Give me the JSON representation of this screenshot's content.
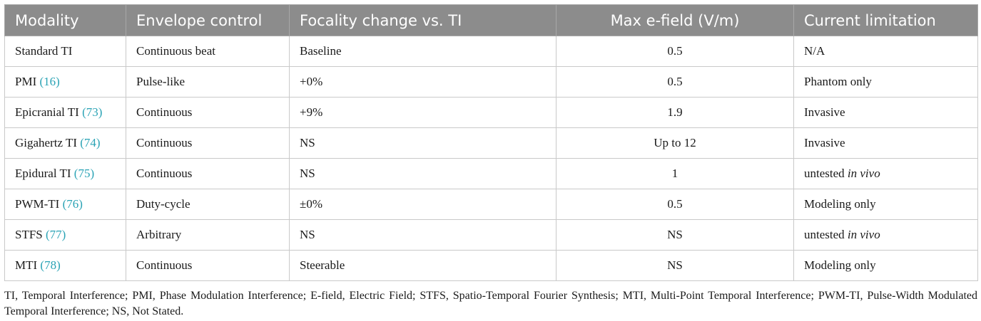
{
  "table": {
    "headers": [
      "Modality",
      "Envelope control",
      "Focality change vs. TI",
      "Max e-field (V/m)",
      "Current limitation"
    ],
    "rows": [
      {
        "modality": "Standard TI",
        "ref": "",
        "envelope": "Continuous beat",
        "focality": "Baseline",
        "max_field": "0.5",
        "limitation": "N/A",
        "limitation_italic": ""
      },
      {
        "modality": "PMI",
        "ref": "(16)",
        "envelope": "Pulse-like",
        "focality": "+0%",
        "max_field": "0.5",
        "limitation": "Phantom only",
        "limitation_italic": ""
      },
      {
        "modality": "Epicranial TI",
        "ref": "(73)",
        "envelope": "Continuous",
        "focality": "+9%",
        "max_field": "1.9",
        "limitation": "Invasive",
        "limitation_italic": ""
      },
      {
        "modality": "Gigahertz TI",
        "ref": "(74)",
        "envelope": "Continuous",
        "focality": "NS",
        "max_field": "Up to 12",
        "limitation": "Invasive",
        "limitation_italic": ""
      },
      {
        "modality": "Epidural TI",
        "ref": "(75)",
        "envelope": "Continuous",
        "focality": "NS",
        "max_field": "1",
        "limitation": "untested",
        "limitation_italic": "in vivo"
      },
      {
        "modality": "PWM-TI",
        "ref": "(76)",
        "envelope": "Duty-cycle",
        "focality": "±0%",
        "max_field": "0.5",
        "limitation": "Modeling only",
        "limitation_italic": ""
      },
      {
        "modality": "STFS",
        "ref": "(77)",
        "envelope": "Arbitrary",
        "focality": "NS",
        "max_field": "NS",
        "limitation": "untested",
        "limitation_italic": "in vivo"
      },
      {
        "modality": "MTI",
        "ref": "(78)",
        "envelope": "Continuous",
        "focality": "Steerable",
        "max_field": "NS",
        "limitation": "Modeling only",
        "limitation_italic": ""
      }
    ]
  },
  "footnote": "TI, Temporal Interference; PMI, Phase Modulation Interference; E-field, Electric Field; STFS, Spatio-Temporal Fourier Synthesis; MTI, Multi-Point Temporal Interference; PWM-TI, Pulse-Width Modulated Temporal Interference; NS, Not Stated.",
  "colors": {
    "header_bg": "#8c8c8c",
    "header_text": "#ffffff",
    "ref_link": "#2aa3b5",
    "border": "#c9c9c9"
  }
}
